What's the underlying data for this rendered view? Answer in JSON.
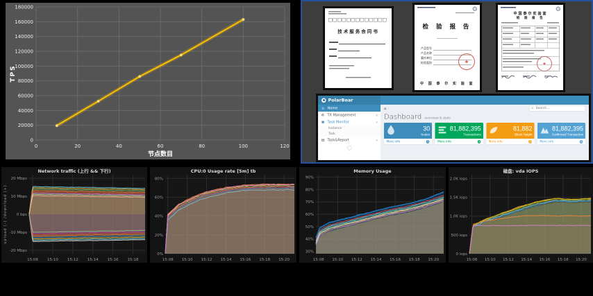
{
  "chart_data": [
    {
      "id": "tps",
      "type": "line",
      "title": "",
      "xlabel": "节点数目",
      "ylabel": "TPS",
      "x": [
        10,
        30,
        50,
        70,
        100
      ],
      "values": [
        19500,
        52500,
        86000,
        115000,
        163000
      ],
      "xlim": [
        0,
        120
      ],
      "ylim": [
        0,
        180000
      ],
      "x_ticks": [
        0,
        20,
        40,
        60,
        80,
        100,
        120
      ],
      "y_ticks": [
        0,
        20000,
        40000,
        60000,
        80000,
        100000,
        120000,
        140000,
        160000,
        180000
      ],
      "line_color": "#ffc200",
      "marker_color": "#ffe28a",
      "bg": "#545454",
      "grid_color": "#6a6a6a",
      "text_color": "#f0f0f0",
      "grid": true,
      "legend": null
    },
    {
      "id": "net",
      "type": "area",
      "title": "Network traffic (上行 && 下行)",
      "ylabel": "upload (-)  /download (+)",
      "y_range": [
        -22,
        22
      ],
      "fill_base": 0,
      "noise": 0.18,
      "seed": 11,
      "y_ticks": [
        {
          "v": 20,
          "label": "20 Mbps"
        },
        {
          "v": 10,
          "label": "10 Mbps"
        },
        {
          "v": 0,
          "label": "0 bps"
        },
        {
          "v": -10,
          "label": "-10 Mbps"
        },
        {
          "v": -20,
          "label": "-20 Mbps"
        }
      ],
      "x_ticks": [
        {
          "f": 0.03,
          "label": "15:08"
        },
        {
          "f": 0.203,
          "label": "15:10"
        },
        {
          "f": 0.376,
          "label": "15:12"
        },
        {
          "f": 0.549,
          "label": "15:14"
        },
        {
          "f": 0.722,
          "label": "15:16"
        },
        {
          "f": 0.895,
          "label": "15:18"
        }
      ],
      "xw": [
        0,
        0.03,
        0.2,
        0.4,
        0.6,
        0.8,
        1
      ],
      "series": [
        {
          "c": "#7d6e4e",
          "a": 0.55,
          "lw": 0,
          "w": [
            0,
            10.2,
            10.1,
            10.0,
            9.9,
            9.8,
            9.7
          ]
        },
        {
          "c": "#635066",
          "a": 0.55,
          "lw": 0,
          "w": [
            0,
            -9.8,
            -9.7,
            -9.6,
            -9.5,
            -9.4,
            -9.3
          ]
        },
        {
          "c": "#6ED0E0",
          "a": 0.08,
          "lw": 1,
          "w": [
            0,
            15.4,
            15.2,
            15.0,
            14.8,
            14.6,
            14.4
          ]
        },
        {
          "c": "#EAB839",
          "a": 0.08,
          "lw": 1,
          "w": [
            0,
            14.7,
            14.5,
            14.3,
            14.1,
            13.9,
            13.7
          ]
        },
        {
          "c": "#7EB26D",
          "a": 0.08,
          "lw": 1,
          "w": [
            0,
            14.0,
            13.8,
            13.6,
            13.4,
            13.2,
            13.0
          ]
        },
        {
          "c": "#EF843C",
          "a": 0.08,
          "lw": 1,
          "w": [
            0,
            13.2,
            13.0,
            12.8,
            12.6,
            12.4,
            12.2
          ]
        },
        {
          "c": "#E24D42",
          "a": 0.08,
          "lw": 1,
          "w": [
            0,
            12.5,
            12.3,
            12.1,
            11.9,
            11.7,
            11.5
          ]
        },
        {
          "c": "#D683CE",
          "a": 0.08,
          "lw": 1,
          "w": [
            0,
            11.8,
            11.6,
            11.4,
            11.2,
            11.0,
            10.8
          ]
        },
        {
          "c": "#B7DBAB",
          "a": 0.08,
          "lw": 1,
          "w": [
            0,
            11.1,
            10.9,
            10.7,
            10.5,
            10.3,
            10.1
          ]
        },
        {
          "c": "#F9BA8F",
          "a": 0.08,
          "lw": 1,
          "w": [
            0,
            10.4,
            10.2,
            10.0,
            9.8,
            9.6,
            9.4
          ]
        },
        {
          "c": "#E0E0E0",
          "a": 0.08,
          "lw": 1,
          "w": [
            0,
            -15.2,
            -15.0,
            -14.8,
            -14.6,
            -14.4,
            -14.2
          ]
        },
        {
          "c": "#6ED0E0",
          "a": 0.08,
          "lw": 1,
          "w": [
            0,
            -14.5,
            -14.3,
            -14.1,
            -13.9,
            -13.7,
            -13.5
          ]
        },
        {
          "c": "#EAB839",
          "a": 0.08,
          "lw": 1,
          "w": [
            0,
            -13.8,
            -13.6,
            -13.4,
            -13.2,
            -13.0,
            -12.8
          ]
        },
        {
          "c": "#447EBC",
          "a": 0.08,
          "lw": 1,
          "w": [
            0,
            -13.0,
            -12.8,
            -12.6,
            -12.4,
            -12.2,
            -12.0
          ]
        },
        {
          "c": "#EF843C",
          "a": 0.08,
          "lw": 1,
          "w": [
            0,
            -12.2,
            -12.0,
            -11.8,
            -11.6,
            -11.4,
            -11.2
          ]
        },
        {
          "c": "#E24D42",
          "a": 0.08,
          "lw": 1,
          "w": [
            0,
            -11.5,
            -11.3,
            -11.1,
            -10.9,
            -10.7,
            -10.5
          ]
        },
        {
          "c": "#BA43A9",
          "a": 0.08,
          "lw": 1,
          "w": [
            0,
            -10.8,
            -10.6,
            -10.4,
            -10.2,
            -10.0,
            -9.8
          ]
        },
        {
          "c": "#9AC48A",
          "a": 0.08,
          "lw": 1,
          "w": [
            0,
            -10.1,
            -9.9,
            -9.7,
            -9.5,
            -9.3,
            -9.1
          ]
        }
      ]
    },
    {
      "id": "cpu",
      "type": "area",
      "title": "CPU:0 Usage rate [5m] tb",
      "ylabel": "",
      "y_range": [
        0,
        84
      ],
      "fill_base": 0,
      "noise": 0.9,
      "seed": 22,
      "y_ticks": [
        {
          "v": 0,
          "label": "0%"
        },
        {
          "v": 20,
          "label": "20%"
        },
        {
          "v": 40,
          "label": "40%"
        },
        {
          "v": 60,
          "label": "60%"
        },
        {
          "v": 80,
          "label": "80%"
        }
      ],
      "x_ticks": [
        {
          "f": 0.02,
          "label": "15:08"
        },
        {
          "f": 0.17,
          "label": "15:10"
        },
        {
          "f": 0.32,
          "label": "15:12"
        },
        {
          "f": 0.47,
          "label": "15:14"
        },
        {
          "f": 0.62,
          "label": "15:16"
        },
        {
          "f": 0.77,
          "label": "15:18"
        },
        {
          "f": 0.92,
          "label": "15:20"
        }
      ],
      "xw": [
        0,
        0.02,
        0.1,
        0.2,
        0.3,
        0.45,
        0.6,
        0.8,
        1
      ],
      "series": [
        {
          "c": "#9e8c64",
          "a": 0.5,
          "lw": 0,
          "w": [
            0,
            38,
            48,
            55,
            61,
            66,
            69,
            70,
            70
          ]
        },
        {
          "c": "#7EB26D",
          "a": 0.1,
          "lw": 1,
          "w": [
            0,
            40,
            50,
            57,
            63,
            68,
            71,
            72,
            72
          ]
        },
        {
          "c": "#EAB839",
          "a": 0.1,
          "lw": 1,
          "w": [
            0,
            41,
            51,
            58,
            64,
            69,
            72,
            73,
            73
          ]
        },
        {
          "c": "#6ED0E0",
          "a": 0.08,
          "lw": 1,
          "w": [
            0,
            36,
            46,
            53,
            59,
            64,
            67,
            68,
            68
          ]
        },
        {
          "c": "#EF843C",
          "a": 0.08,
          "lw": 1,
          "w": [
            0,
            42,
            52,
            59,
            65,
            70,
            73,
            74,
            74
          ]
        },
        {
          "c": "#E24D42",
          "a": 0.08,
          "lw": 1,
          "w": [
            0,
            39,
            49,
            56,
            62,
            67,
            70,
            71,
            71
          ]
        },
        {
          "c": "#447EBC",
          "a": 0.08,
          "lw": 1,
          "w": [
            0,
            38,
            48,
            55,
            61,
            66,
            69,
            70,
            70
          ]
        },
        {
          "c": "#D683CE",
          "a": 0.08,
          "lw": 1,
          "w": [
            0,
            41.5,
            51.5,
            58.5,
            64.5,
            69.5,
            72.5,
            73.5,
            73.5
          ]
        }
      ]
    },
    {
      "id": "mem",
      "type": "area",
      "title": "Memory Usage",
      "ylabel": "",
      "y_range": [
        28,
        92
      ],
      "fill_base": 28,
      "noise": 0.5,
      "seed": 33,
      "y_ticks": [
        {
          "v": 30,
          "label": "30%"
        },
        {
          "v": 40,
          "label": "40%"
        },
        {
          "v": 50,
          "label": "50%"
        },
        {
          "v": 60,
          "label": "60%"
        },
        {
          "v": 70,
          "label": "70%"
        },
        {
          "v": 80,
          "label": "80%"
        },
        {
          "v": 90,
          "label": "90%"
        }
      ],
      "x_ticks": [
        {
          "f": 0.02,
          "label": "15:08"
        },
        {
          "f": 0.17,
          "label": "15:10"
        },
        {
          "f": 0.32,
          "label": "15:12"
        },
        {
          "f": 0.47,
          "label": "15:14"
        },
        {
          "f": 0.62,
          "label": "15:16"
        },
        {
          "f": 0.77,
          "label": "15:18"
        },
        {
          "f": 0.92,
          "label": "15:20"
        }
      ],
      "xw": [
        0,
        0.03,
        0.1,
        0.25,
        0.4,
        0.55,
        0.7,
        0.85,
        1
      ],
      "series": [
        {
          "c": "#1F78C1",
          "a": 0.3,
          "lw": 1.2,
          "w": [
            41,
            49,
            53,
            57,
            61,
            65,
            68,
            72,
            78
          ]
        },
        {
          "c": "#9e8c64",
          "a": 0.55,
          "lw": 0,
          "w": [
            34,
            42,
            46,
            50,
            54,
            58,
            61,
            65,
            70
          ]
        },
        {
          "c": "#E24D42",
          "a": 0.06,
          "lw": 1,
          "w": [
            39,
            47,
            51,
            55,
            59,
            63,
            66,
            70,
            75
          ]
        },
        {
          "c": "#7EB26D",
          "a": 0.06,
          "lw": 1,
          "w": [
            37,
            45,
            49,
            53,
            57,
            61,
            64,
            68,
            73
          ]
        },
        {
          "c": "#EAB839",
          "a": 0.06,
          "lw": 1,
          "w": [
            36,
            44,
            48,
            52,
            56,
            60,
            63,
            67,
            72
          ]
        },
        {
          "c": "#6ED0E0",
          "a": 0.06,
          "lw": 1,
          "w": [
            38,
            46,
            50,
            54,
            58,
            62,
            65,
            69,
            74
          ]
        },
        {
          "c": "#D683CE",
          "a": 0.06,
          "lw": 1,
          "w": [
            35,
            43,
            47,
            51,
            55,
            59,
            62,
            66,
            71
          ]
        },
        {
          "c": "#C8C8C8",
          "a": 0.06,
          "lw": 1,
          "w": [
            36.5,
            44.5,
            48.5,
            52.5,
            56.5,
            60.5,
            63.5,
            67.5,
            72.5
          ]
        },
        {
          "c": "#1F78C1",
          "a": 0,
          "lw": 1.2,
          "w": [
            41,
            49,
            53,
            57,
            61,
            65,
            68,
            72,
            78
          ]
        }
      ]
    },
    {
      "id": "iops",
      "type": "area",
      "title": "磁盘: vda IOPS",
      "ylabel": "",
      "y_range": [
        0,
        2100
      ],
      "fill_base": 0,
      "noise": 16,
      "seed": 44,
      "y_ticks": [
        {
          "v": 0,
          "label": "0 iops"
        },
        {
          "v": 500,
          "label": "500 iops"
        },
        {
          "v": 1000,
          "label": "1.0K iops"
        },
        {
          "v": 1500,
          "label": "1.5K iops"
        },
        {
          "v": 2000,
          "label": "2.0K iops"
        }
      ],
      "x_ticks": [
        {
          "f": 0.02,
          "label": "15:08"
        },
        {
          "f": 0.17,
          "label": "15:10"
        },
        {
          "f": 0.32,
          "label": "15:12"
        },
        {
          "f": 0.47,
          "label": "15:14"
        },
        {
          "f": 0.62,
          "label": "15:16"
        },
        {
          "f": 0.77,
          "label": "15:18"
        },
        {
          "f": 0.92,
          "label": "15:20"
        }
      ],
      "xw": [
        0,
        0.03,
        0.12,
        0.25,
        0.4,
        0.55,
        0.7,
        0.85,
        1
      ],
      "series": [
        {
          "c": "#8f7f58",
          "a": 0.5,
          "lw": 0,
          "w": [
            0,
            700,
            820,
            960,
            1110,
            1260,
            1360,
            1350,
            1370
          ]
        },
        {
          "c": "#EAB839",
          "a": 0.12,
          "lw": 1,
          "w": [
            0,
            760,
            900,
            1060,
            1230,
            1380,
            1470,
            1450,
            1470
          ]
        },
        {
          "c": "#7EB26D",
          "a": 0.12,
          "lw": 1,
          "w": [
            0,
            740,
            880,
            1040,
            1200,
            1360,
            1450,
            1430,
            1450
          ]
        },
        {
          "c": "#CCA300",
          "a": 0.1,
          "lw": 1,
          "w": [
            0,
            750,
            890,
            1050,
            1220,
            1370,
            1460,
            1445,
            1460
          ]
        },
        {
          "c": "#6ED0E0",
          "a": 0.1,
          "lw": 1,
          "w": [
            0,
            720,
            850,
            1000,
            1160,
            1320,
            1410,
            1400,
            1420
          ]
        },
        {
          "c": "#447EBC",
          "a": 0.1,
          "lw": 1,
          "w": [
            0,
            700,
            830,
            980,
            1130,
            1290,
            1390,
            1380,
            1400
          ]
        },
        {
          "c": "#EF843C",
          "a": 0.08,
          "lw": 1,
          "w": [
            0,
            790,
            860,
            930,
            990,
            1020,
            1000,
            1010,
            1000
          ]
        },
        {
          "c": "#D683CE",
          "a": 0.05,
          "lw": 1,
          "w": [
            0,
            740,
            750,
            749,
            751,
            750,
            749,
            750,
            750
          ]
        }
      ]
    }
  ],
  "documents": {
    "doc1": {
      "title": "技术服务合同书"
    },
    "doc2": {
      "title": "检 验 报 告",
      "fields": [
        "产品型号",
        "产品名称",
        "委托单位",
        "检验类别"
      ],
      "footer": "中 国 泰 尔 实 验 室"
    },
    "doc3": {
      "org": "中国泰尔实验室",
      "title": "检 验 报 告"
    }
  },
  "dashboard": {
    "brand": "PolarBear",
    "search_placeholder": "Search...",
    "page_title": "Dashboard",
    "page_subtitle": "overview & stats",
    "sidebar": [
      {
        "label": "Home"
      },
      {
        "label": "TX Management"
      },
      {
        "label": "Task Monitor",
        "children": [
          "Instance",
          "Task"
        ]
      },
      {
        "label": "Task&Report"
      }
    ],
    "cards": [
      {
        "value": "30",
        "label": "Nodes",
        "color": "#3c8dbc",
        "icon": "drop-icon",
        "footer": "More info"
      },
      {
        "value": "81,882,395",
        "label": "Transactions",
        "color": "#00a65a",
        "icon": "list-icon",
        "footer": "More info"
      },
      {
        "value": "81,882",
        "label": "Block Height",
        "color": "#f39c12",
        "icon": "leaf-icon",
        "footer": "More info"
      },
      {
        "value": "81,882,395",
        "label": "Confirmed Transaction",
        "color": "#54a1d4",
        "icon": "mountain-icon",
        "footer": "More info"
      }
    ]
  }
}
